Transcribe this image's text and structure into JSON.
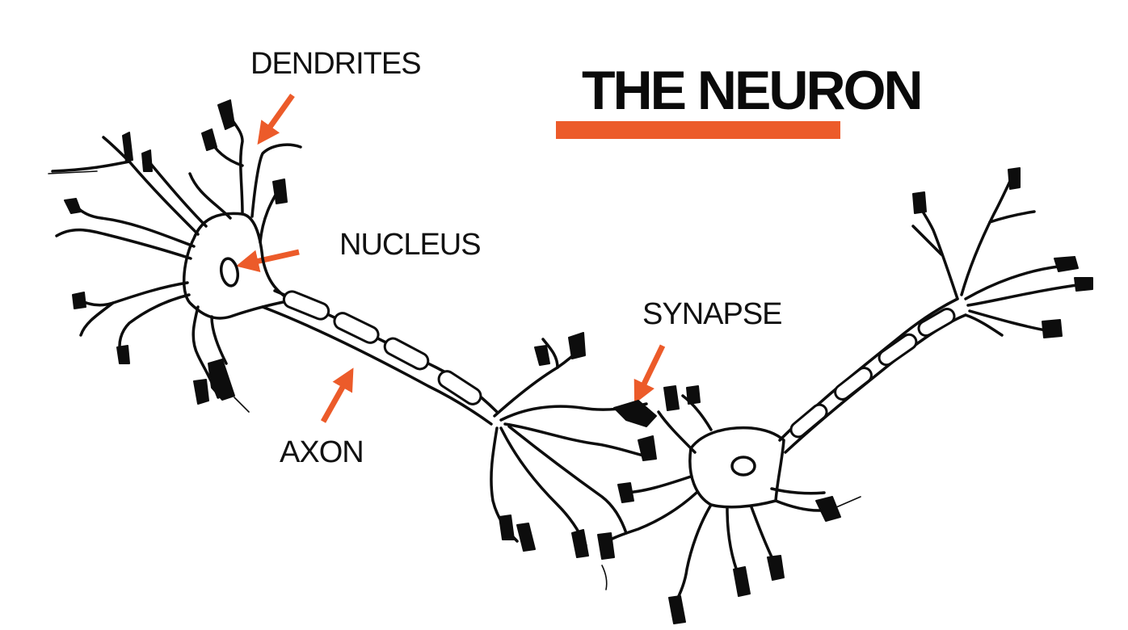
{
  "title": "THE NEURON",
  "labels": {
    "dendrites": "DENDRITES",
    "nucleus": "NUCLEUS",
    "synapse": "SYNAPSE",
    "axon": "AXON"
  },
  "colors": {
    "accent": "#EC5B2A",
    "ink": "#0D0D0D",
    "background": "#FFFFFF"
  }
}
